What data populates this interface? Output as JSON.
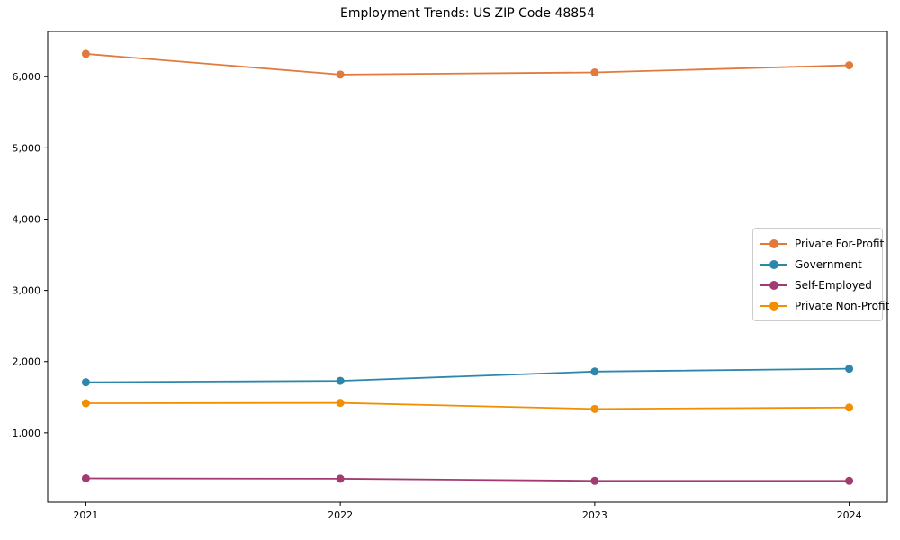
{
  "title": "Employment Trends: US ZIP Code 48854",
  "chart_data": {
    "type": "line",
    "title": "Employment Trends: US ZIP Code 48854",
    "xlabel": "",
    "ylabel": "",
    "x": [
      2021,
      2022,
      2023,
      2024
    ],
    "xtick_labels": [
      "2021",
      "2022",
      "2023",
      "2024"
    ],
    "yticks": [
      1000,
      2000,
      3000,
      4000,
      5000,
      6000
    ],
    "ytick_labels": [
      "1,000",
      "2,000",
      "3,000",
      "4,000",
      "5,000",
      "6,000"
    ],
    "ylim": [
      25,
      6635
    ],
    "grid": false,
    "legend_position": "center right",
    "series": [
      {
        "name": "Private For-Profit",
        "color": "#E17A3D",
        "values": [
          6320,
          6030,
          6060,
          6160
        ]
      },
      {
        "name": "Government",
        "color": "#2E86AB",
        "values": [
          1710,
          1730,
          1860,
          1900
        ]
      },
      {
        "name": "Self-Employed",
        "color": "#A23B72",
        "values": [
          360,
          355,
          325,
          325
        ]
      },
      {
        "name": "Private Non-Profit",
        "color": "#F18F01",
        "values": [
          1415,
          1420,
          1335,
          1355
        ]
      }
    ]
  }
}
